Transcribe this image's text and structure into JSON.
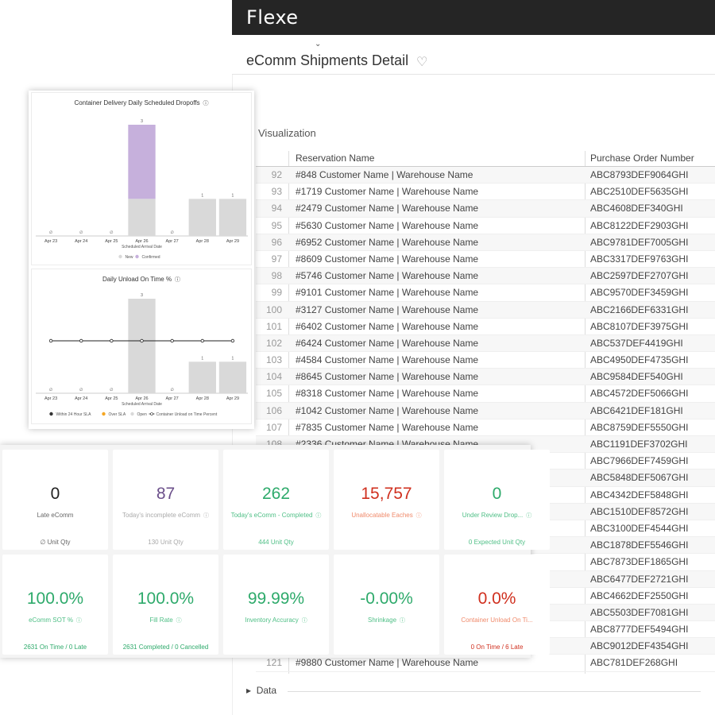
{
  "app": {
    "logo": "Flexe",
    "chevron": "⌄",
    "page_title": "eComm Shipments Detail",
    "favorite_icon": "heart-icon",
    "visualization_label": "Visualization",
    "data_label": "Data"
  },
  "table": {
    "columns": [
      "Reservation Name",
      "Purchase Order Number"
    ],
    "rows": [
      {
        "n": "92",
        "res": "#848 Customer Name | Warehouse Name",
        "po": "ABC8793DEF9064GHI"
      },
      {
        "n": "93",
        "res": "#1719 Customer Name | Warehouse Name",
        "po": "ABC2510DEF5635GHI"
      },
      {
        "n": "94",
        "res": "#2479 Customer Name | Warehouse Name",
        "po": "ABC4608DEF340GHI"
      },
      {
        "n": "95",
        "res": "#5630 Customer Name | Warehouse Name",
        "po": "ABC8122DEF2903GHI"
      },
      {
        "n": "96",
        "res": "#6952 Customer Name | Warehouse Name",
        "po": "ABC9781DEF7005GHI"
      },
      {
        "n": "97",
        "res": "#8609 Customer Name | Warehouse Name",
        "po": "ABC3317DEF9763GHI"
      },
      {
        "n": "98",
        "res": "#5746 Customer Name | Warehouse Name",
        "po": "ABC2597DEF2707GHI"
      },
      {
        "n": "99",
        "res": "#9101 Customer Name | Warehouse Name",
        "po": "ABC9570DEF3459GHI"
      },
      {
        "n": "100",
        "res": "#3127 Customer Name | Warehouse Name",
        "po": "ABC2166DEF6331GHI"
      },
      {
        "n": "101",
        "res": "#6402 Customer Name | Warehouse Name",
        "po": "ABC8107DEF3975GHI"
      },
      {
        "n": "102",
        "res": "#6424 Customer Name | Warehouse Name",
        "po": "ABC537DEF4419GHI"
      },
      {
        "n": "103",
        "res": "#4584 Customer Name | Warehouse Name",
        "po": "ABC4950DEF4735GHI"
      },
      {
        "n": "104",
        "res": "#8645 Customer Name | Warehouse Name",
        "po": "ABC9584DEF540GHI"
      },
      {
        "n": "105",
        "res": "#8318 Customer Name | Warehouse Name",
        "po": "ABC4572DEF5066GHI"
      },
      {
        "n": "106",
        "res": "#1042 Customer Name | Warehouse Name",
        "po": "ABC6421DEF181GHI"
      },
      {
        "n": "107",
        "res": "#7835 Customer Name | Warehouse Name",
        "po": "ABC8759DEF5550GHI"
      },
      {
        "n": "108",
        "res": "#2336 Customer Name | Warehouse Name",
        "po": "ABC1191DEF3702GHI"
      },
      {
        "n": "",
        "res": "",
        "po": "ABC7966DEF7459GHI"
      },
      {
        "n": "",
        "res": "",
        "po": "ABC5848DEF5067GHI"
      },
      {
        "n": "",
        "res": "",
        "po": "ABC4342DEF5848GHI"
      },
      {
        "n": "",
        "res": "",
        "po": "ABC1510DEF8572GHI"
      },
      {
        "n": "",
        "res": "",
        "po": "ABC3100DEF4544GHI"
      },
      {
        "n": "",
        "res": "",
        "po": "ABC1878DEF5546GHI"
      },
      {
        "n": "",
        "res": "",
        "po": "ABC7873DEF1865GHI"
      },
      {
        "n": "",
        "res": "",
        "po": "ABC6477DEF2721GHI"
      },
      {
        "n": "",
        "res": "",
        "po": "ABC4662DEF2550GHI"
      },
      {
        "n": "",
        "res": "",
        "po": "ABC5503DEF7081GHI"
      },
      {
        "n": "",
        "res": "",
        "po": "ABC8777DEF5494GHI"
      },
      {
        "n": "",
        "res": "",
        "po": "ABC9012DEF4354GHI"
      },
      {
        "n": "121",
        "res": "#9880 Customer Name | Warehouse Name",
        "po": "ABC781DEF268GHI"
      }
    ]
  },
  "chart_data": [
    {
      "type": "bar",
      "title": "Container Delivery Daily Scheduled Dropoffs",
      "xlabel": "Scheduled Arrival Date",
      "ylabel": "",
      "categories": [
        "Apr 23",
        "Apr 24",
        "Apr 25",
        "Apr 26",
        "Apr 27",
        "Apr 28",
        "Apr 29"
      ],
      "stacked": true,
      "ylim": [
        0,
        3
      ],
      "series": [
        {
          "name": "New",
          "values": [
            0,
            0,
            0,
            1,
            0,
            1,
            1
          ],
          "color": "#d9d9d9"
        },
        {
          "name": "Confirmed",
          "values": [
            0,
            0,
            0,
            2,
            0,
            0,
            0
          ],
          "color": "#c6b0dc"
        }
      ],
      "data_labels": [
        "∅",
        "∅",
        "∅",
        "3",
        "∅",
        "1",
        "1"
      ],
      "legend_position": "bottom"
    },
    {
      "type": "bar",
      "title": "Daily Unload On Time %",
      "xlabel": "Scheduled Arrival Date",
      "ylabel": "",
      "categories": [
        "Apr 23",
        "Apr 24",
        "Apr 25",
        "Apr 26",
        "Apr 27",
        "Apr 28",
        "Apr 29"
      ],
      "stacked": true,
      "ylim": [
        0,
        3
      ],
      "series": [
        {
          "name": "Within 24 Hour SLA",
          "values": [
            0,
            0,
            0,
            0,
            0,
            0,
            0
          ],
          "color": "#333333"
        },
        {
          "name": "Over SLA",
          "values": [
            0,
            0,
            0,
            0,
            0,
            0,
            0
          ],
          "color": "#f5a623"
        },
        {
          "name": "Open",
          "values": [
            0,
            0,
            0,
            3,
            0,
            1,
            1
          ],
          "color": "#d9d9d9"
        },
        {
          "name": "Container Unload on Time Percent",
          "type": "line",
          "values": [
            1,
            1,
            1,
            1,
            1,
            1,
            1
          ],
          "color": "#222222"
        }
      ],
      "data_labels": [
        "∅",
        "∅",
        "∅",
        "3",
        "∅",
        "1",
        "1"
      ],
      "legend_position": "bottom"
    }
  ],
  "kpis": [
    {
      "value": "0",
      "label": "Late eComm",
      "sub": "∅ Unit Qty",
      "color": "#222222",
      "label_color": "#666666",
      "sub_color": "#666666",
      "info": false
    },
    {
      "value": "87",
      "label": "Today's incomplete eComm",
      "sub": "130 Unit Qty",
      "color": "#6b4f8a",
      "label_color": "#aaaaaa",
      "sub_color": "#aaaaaa",
      "sub_strong": "130",
      "info": true
    },
    {
      "value": "262",
      "label": "Today's eComm - Completed",
      "sub": "444 Unit Qty",
      "color": "#2eaa6b",
      "label_color": "#4fbf86",
      "sub_color": "#4fbf86",
      "info": true
    },
    {
      "value": "15,757",
      "label": "Unallocatable Eaches",
      "sub": "",
      "color": "#d0301f",
      "label_color": "#f08a6b",
      "sub_color": "#f08a6b",
      "info": true
    },
    {
      "value": "0",
      "label": "Under Review Drop...",
      "sub": "0 Expected Unit Qty",
      "color": "#2eaa6b",
      "label_color": "#4fbf86",
      "sub_color": "#4fbf86",
      "info": true
    },
    {
      "value": "100.0%",
      "label": "eComm SOT %",
      "sub": "2631 On Time / 0 Late",
      "color": "#2eaa6b",
      "label_color": "#4fbf86",
      "sub_color": "#2eaa6b",
      "info": true
    },
    {
      "value": "100.0%",
      "label": "Fill Rate",
      "sub": "2631 Completed / 0 Cancelled",
      "color": "#2eaa6b",
      "label_color": "#4fbf86",
      "sub_color": "#2eaa6b",
      "info": true
    },
    {
      "value": "99.99%",
      "label": "Inventory Accuracy",
      "sub": "",
      "color": "#2eaa6b",
      "label_color": "#4fbf86",
      "sub_color": "#2eaa6b",
      "info": true
    },
    {
      "value": "-0.00%",
      "label": "Shrinkage",
      "sub": "",
      "color": "#2eaa6b",
      "label_color": "#4fbf86",
      "sub_color": "#2eaa6b",
      "info": true
    },
    {
      "value": "0.0%",
      "label": "Container Unload On Ti...",
      "sub": "0 On Time / 6 Late",
      "color": "#d0301f",
      "label_color": "#f08a6b",
      "sub_color": "#d0301f",
      "info": false
    }
  ]
}
